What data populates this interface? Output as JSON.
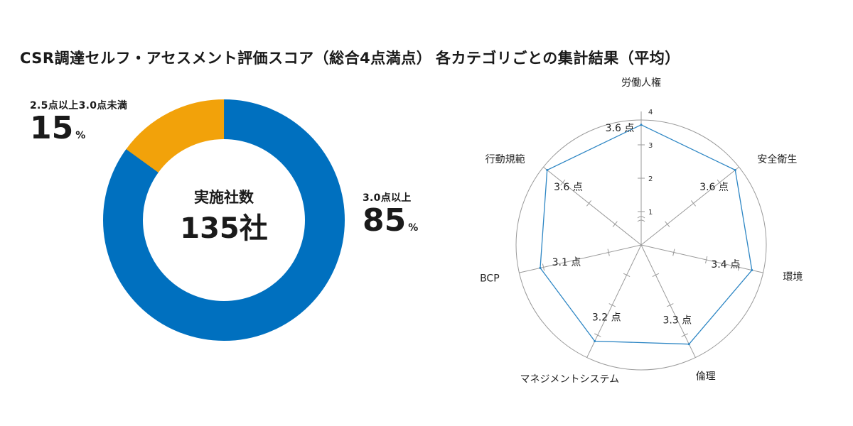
{
  "left_panel": {
    "title": "CSR調達セルフ・アセスメント評価スコア（総合4点満点）",
    "center_caption": "実施社数",
    "center_value": "135社"
  },
  "right_panel": {
    "title": "各カテゴリごとの集計結果（平均）"
  },
  "colors": {
    "blue": "#0070bf",
    "orange": "#f2a20a",
    "radar_line": "#2d86c4",
    "grid": "#9a9a9a"
  },
  "chart_data": [
    {
      "type": "pie",
      "donut": true,
      "slices": [
        {
          "label": "3.0点以上",
          "percent_value": 85,
          "percent_text": "85",
          "unit": "%",
          "color": "#0070bf"
        },
        {
          "label": "2.5点以上3.0点未満",
          "percent_value": 15,
          "percent_text": "15",
          "unit": "%",
          "color": "#f2a20a"
        }
      ]
    },
    {
      "type": "radar",
      "categories": [
        "労働人権",
        "安全衛生",
        "環境",
        "倫理",
        "マネジメントシステム",
        "BCP",
        "行動規範"
      ],
      "values": [
        3.6,
        3.6,
        3.4,
        3.3,
        3.2,
        3.1,
        3.6
      ],
      "value_labels": [
        "3.6 点",
        "3.6 点",
        "3.4 点",
        "3.3 点",
        "3.2 点",
        "3.1 点",
        "3.6 点"
      ],
      "scale_labels": [
        "1",
        "2",
        "3",
        "4"
      ],
      "rlim": [
        0,
        4
      ],
      "scale_break": true
    }
  ]
}
